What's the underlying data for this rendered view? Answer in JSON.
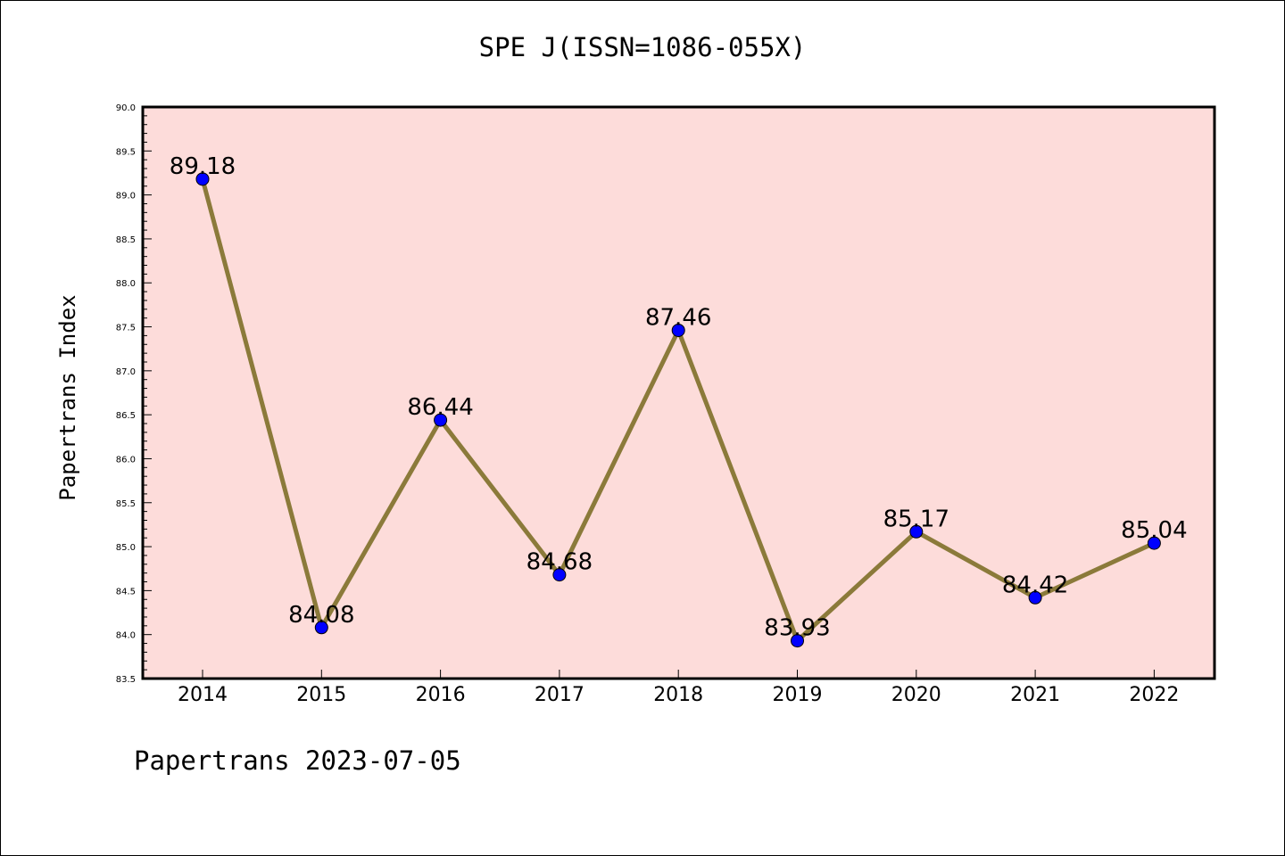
{
  "title": "SPE J(ISSN=1086-055X)",
  "footer": "Papertrans 2023-07-05",
  "colors": {
    "plot_background": "#fddcda",
    "line": "#8b7a3a",
    "marker": "#0000ff",
    "axis": "#000000"
  },
  "chart_data": {
    "type": "line",
    "title": "SPE J(ISSN=1086-055X)",
    "xlabel": "",
    "ylabel": "Papertrans Index",
    "categories": [
      "2014",
      "2015",
      "2016",
      "2017",
      "2018",
      "2019",
      "2020",
      "2021",
      "2022"
    ],
    "series": [
      {
        "values": [
          89.18,
          84.08,
          86.44,
          84.68,
          87.46,
          83.93,
          85.17,
          84.42,
          85.04
        ],
        "labels": [
          "89.18",
          "84.08",
          "86.44",
          "84.68",
          "87.46",
          "83.93",
          "85.17",
          "84.42",
          "85.04"
        ]
      }
    ],
    "ylim": [
      83.5,
      90.0
    ],
    "yticks": [
      "83.5",
      "84.0",
      "84.5",
      "85.0",
      "85.5",
      "86.0",
      "86.5",
      "87.0",
      "87.5",
      "88.0",
      "88.5",
      "89.0",
      "89.5",
      "90.0"
    ],
    "grid": false,
    "legend": "none"
  }
}
